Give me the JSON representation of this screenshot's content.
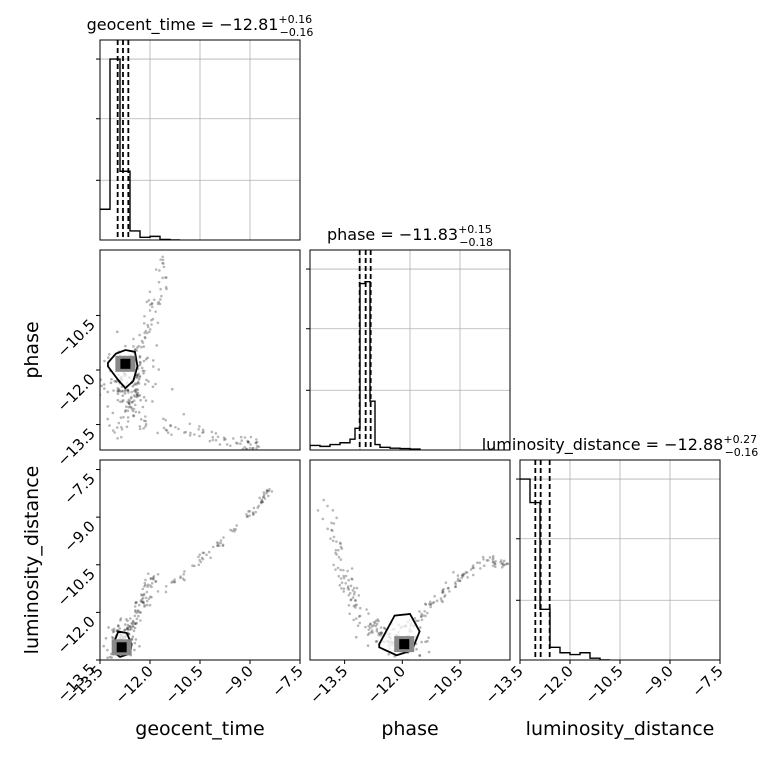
{
  "chart_data": {
    "type": "corner",
    "parameters": [
      "geocent_time",
      "phase",
      "luminosity_distance"
    ],
    "axis_labels": [
      "geocent_time",
      "phase",
      "luminosity_distance"
    ],
    "range": [
      -13.5,
      -7.5
    ],
    "ticks": [
      -13.5,
      -12.0,
      -10.5,
      -9.0,
      -7.5
    ],
    "tick_labels": [
      "−13.5",
      "−12.0",
      "−10.5",
      "−9.0",
      "−7.5"
    ],
    "quantile_lines": "dashed",
    "grid": true,
    "panels": [
      {
        "row": 0,
        "col": 0,
        "kind": "histogram",
        "parameter": "geocent_time",
        "title": {
          "main": "geocent_time = −12.81",
          "sup": "+0.16",
          "sub": "−0.16"
        },
        "bin_edges": [
          -13.5,
          -13.2,
          -12.9,
          -12.6,
          -12.3,
          -12.0,
          -11.7,
          -11.4,
          -11.1
        ],
        "counts": [
          0.17,
          1.0,
          0.38,
          0.05,
          0.015,
          0.02,
          0.003,
          0.0
        ],
        "quantiles": [
          -12.97,
          -12.81,
          -12.65
        ]
      },
      {
        "row": 1,
        "col": 1,
        "kind": "histogram",
        "parameter": "phase",
        "title": {
          "main": "phase = −11.83",
          "sup": "+0.15",
          "sub": "−0.18"
        },
        "bin_edges": [
          -13.8,
          -13.5,
          -13.2,
          -12.9,
          -12.6,
          -12.3,
          -12.15,
          -12.0,
          -11.85,
          -11.7,
          -11.55,
          -11.4,
          -11.1,
          -10.8,
          -10.5,
          -10.2
        ],
        "counts": [
          0.01,
          0.025,
          0.02,
          0.03,
          0.04,
          0.06,
          0.12,
          0.92,
          0.93,
          0.27,
          0.03,
          0.015,
          0.01,
          0.008,
          0.005
        ],
        "quantiles": [
          -12.01,
          -11.83,
          -11.68
        ]
      },
      {
        "row": 2,
        "col": 2,
        "kind": "histogram",
        "parameter": "luminosity_distance",
        "title": {
          "main": "luminosity_distance = −12.88",
          "sup": "+0.27",
          "sub": "−0.16"
        },
        "bin_edges": [
          -13.5,
          -13.2,
          -12.9,
          -12.6,
          -12.3,
          -12.0,
          -11.7,
          -11.4,
          -11.1,
          -10.8
        ],
        "counts": [
          1.0,
          0.87,
          0.28,
          0.07,
          0.04,
          0.03,
          0.04,
          0.01,
          0.0
        ],
        "quantiles": [
          -13.04,
          -12.88,
          -12.61
        ]
      },
      {
        "row": 1,
        "col": 0,
        "kind": "scatter",
        "x": "geocent_time",
        "y": "phase",
        "x_range": [
          -13.8,
          -7.5
        ],
        "y_range": [
          -14.2,
          -8.7
        ],
        "density_peak": [
          -13.0,
          -11.83
        ],
        "contour": [
          [
            -13.55,
            -11.8
          ],
          [
            -13.3,
            -11.55
          ],
          [
            -13.0,
            -11.45
          ],
          [
            -12.7,
            -11.5
          ],
          [
            -12.62,
            -11.9
          ],
          [
            -12.75,
            -12.3
          ],
          [
            -13.0,
            -12.5
          ],
          [
            -13.25,
            -12.25
          ],
          [
            -13.55,
            -11.9
          ]
        ],
        "scatter_paths": [
          {
            "points": [
              [
                -13.4,
                -13.8
              ],
              [
                -13.0,
                -13.2
              ],
              [
                -12.7,
                -12.7
              ],
              [
                -12.6,
                -12.2
              ],
              [
                -12.7,
                -11.7
              ],
              [
                -12.5,
                -11.2
              ],
              [
                -12.2,
                -10.5
              ],
              [
                -11.9,
                -9.7
              ],
              [
                -11.8,
                -9.0
              ]
            ],
            "count": 120,
            "spread": 0.12
          },
          {
            "points": [
              [
                -13.2,
                -12.0
              ],
              [
                -12.6,
                -13.5
              ],
              [
                -11.5,
                -13.6
              ],
              [
                -10.5,
                -13.8
              ],
              [
                -9.5,
                -14.0
              ],
              [
                -8.7,
                -14.1
              ]
            ],
            "count": 90,
            "spread": 0.12
          }
        ],
        "cluster": {
          "center": [
            -13.0,
            -12.3
          ],
          "count": 140,
          "spread": [
            0.45,
            0.6
          ]
        }
      },
      {
        "row": 2,
        "col": 0,
        "kind": "scatter",
        "x": "geocent_time",
        "y": "luminosity_distance",
        "x_range": [
          -13.5,
          -7.5
        ],
        "y_range": [
          -13.5,
          -7.2
        ],
        "density_peak": [
          -12.85,
          -13.1
        ],
        "contour": [
          [
            -13.1,
            -13.0
          ],
          [
            -12.95,
            -12.6
          ],
          [
            -12.7,
            -12.65
          ],
          [
            -12.55,
            -13.0
          ],
          [
            -12.6,
            -13.3
          ],
          [
            -12.9,
            -13.4
          ],
          [
            -13.1,
            -13.25
          ]
        ],
        "scatter_paths": [
          {
            "points": [
              [
                -12.9,
                -13.0
              ],
              [
                -12.5,
                -12.3
              ],
              [
                -12.2,
                -11.5
              ],
              [
                -11.9,
                -10.8
              ]
            ],
            "count": 70,
            "spread": 0.08
          },
          {
            "points": [
              [
                -12.9,
                -13.0
              ],
              [
                -12.0,
                -11.6
              ],
              [
                -11.0,
                -10.8
              ],
              [
                -10.0,
                -9.9
              ],
              [
                -9.0,
                -8.9
              ],
              [
                -8.4,
                -8.1
              ]
            ],
            "count": 100,
            "spread": 0.06
          }
        ],
        "cluster": {
          "center": [
            -12.85,
            -12.85
          ],
          "count": 90,
          "spread": [
            0.25,
            0.35
          ]
        }
      },
      {
        "row": 2,
        "col": 1,
        "kind": "scatter",
        "x": "phase",
        "y": "luminosity_distance",
        "x_range": [
          -14.4,
          -9.2
        ],
        "y_range": [
          -13.5,
          -7.2
        ],
        "density_peak": [
          -11.95,
          -13.0
        ],
        "contour": [
          [
            -12.6,
            -13.0
          ],
          [
            -12.2,
            -12.1
          ],
          [
            -11.8,
            -12.05
          ],
          [
            -11.55,
            -12.6
          ],
          [
            -11.75,
            -13.2
          ],
          [
            -12.15,
            -13.35
          ],
          [
            -12.6,
            -13.1
          ]
        ],
        "scatter_paths": [
          {
            "points": [
              [
                -14.0,
                -8.5
              ],
              [
                -13.5,
                -11.0
              ],
              [
                -13.0,
                -12.2
              ],
              [
                -12.4,
                -12.9
              ]
            ],
            "count": 120,
            "spread": 0.12
          },
          {
            "points": [
              [
                -11.9,
                -12.5
              ],
              [
                -11.2,
                -11.7
              ],
              [
                -10.5,
                -10.9
              ],
              [
                -9.8,
                -10.3
              ],
              [
                -9.3,
                -10.5
              ]
            ],
            "count": 100,
            "spread": 0.08
          }
        ],
        "cluster": {
          "center": [
            -12.0,
            -12.9
          ],
          "count": 80,
          "spread": [
            0.4,
            0.3
          ]
        }
      }
    ]
  }
}
